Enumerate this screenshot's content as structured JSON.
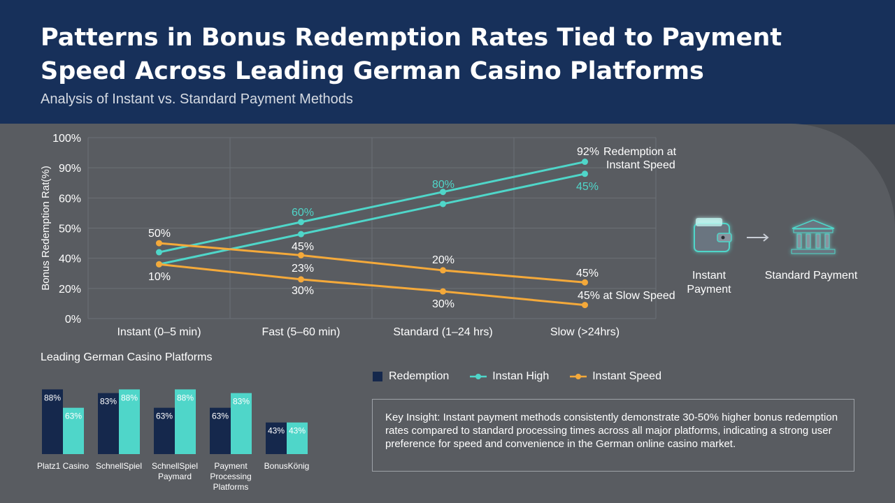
{
  "header": {
    "title": "Patterns in Bonus Redemption Rates Tied to Payment Speed Across Leading German Casino Platforms",
    "subtitle": "Analysis of Instant vs. Standard Payment Methods"
  },
  "colors": {
    "header_bg": "#17305a",
    "panel_bg": "#595c61",
    "teal": "#4fd6c9",
    "orange": "#f4a93a",
    "navy": "#15284c"
  },
  "chart_data": [
    {
      "type": "line",
      "ylabel": "Bonus Redemption Rat(%)",
      "categories": [
        "Instant (0–5 min)",
        "Fast (5–60 min)",
        "Standard (1–24 hrs)",
        "Slow (>24hrs)"
      ],
      "y_ticks": [
        "0%",
        "20%",
        "40%",
        "50%",
        "60%",
        "90%",
        "100%"
      ],
      "ylim": [
        0,
        6
      ],
      "grid": true,
      "series": [
        {
          "color": "#4fd6c9",
          "values": [
            2.2,
            3.2,
            4.2,
            5.2
          ]
        },
        {
          "color": "#4fd6c9",
          "values": [
            1.8,
            2.8,
            3.8,
            4.8
          ]
        },
        {
          "color": "#f4a93a",
          "values": [
            2.5,
            2.1,
            1.6,
            1.2
          ]
        },
        {
          "color": "#f4a93a",
          "values": [
            1.8,
            1.3,
            0.9,
            0.45
          ]
        }
      ],
      "annotations": [
        {
          "text": "92%",
          "color": "#ffffff"
        },
        {
          "text": "Redemption at",
          "color": "#ffffff"
        },
        {
          "text": "Instant Speed",
          "color": "#ffffff"
        },
        {
          "text": "80%",
          "color": "#4fd6c9"
        },
        {
          "text": "60%",
          "color": "#4fd6c9"
        },
        {
          "text": "45%",
          "color": "#4fd6c9"
        },
        {
          "text": "50%",
          "color": "#ffffff"
        },
        {
          "text": "45%",
          "color": "#ffffff"
        },
        {
          "text": "10%",
          "color": "#ffffff"
        },
        {
          "text": "23%",
          "color": "#ffffff"
        },
        {
          "text": "20%",
          "color": "#ffffff"
        },
        {
          "text": "30%",
          "color": "#ffffff"
        },
        {
          "text": "30%",
          "color": "#ffffff"
        },
        {
          "text": "45%",
          "color": "#ffffff"
        },
        {
          "text": "45% at Slow Speed",
          "color": "#ffffff"
        }
      ]
    },
    {
      "type": "bar",
      "title": "Leading German Casino Platforms",
      "categories": [
        "Platz1 Casino",
        "SchnellSpiel",
        "SchnellSpiel Paymard",
        "Payment Processing Platforms",
        "BonusKönig"
      ],
      "series": [
        {
          "color": "#15284c",
          "values": [
            88,
            83,
            63,
            63,
            43
          ],
          "labels": [
            "88%",
            "83%",
            "63%",
            "63%",
            "43%"
          ]
        },
        {
          "color": "#4fd6c9",
          "values": [
            63,
            88,
            88,
            83,
            43
          ],
          "labels": [
            "63%",
            "88%",
            "88%",
            "83%",
            "43%"
          ]
        }
      ]
    }
  ],
  "legend": {
    "items": [
      {
        "label": "Redemption",
        "color": "#15284c",
        "shape": "square"
      },
      {
        "label": "Instan High",
        "color": "#4fd6c9",
        "shape": "line-dot"
      },
      {
        "label": "Instant Speed",
        "color": "#f4a93a",
        "shape": "line-dot"
      }
    ]
  },
  "flow": {
    "left_icon": "wallet-icon",
    "arrow_icon": "arrow-right-icon",
    "right_icon": "bank-icon",
    "left_label": "Instant\nPayment",
    "right_label": "Standard Payment"
  },
  "insight": {
    "label": "Key Insight:",
    "text": "Instant payment methods consistently demonstrate 30-50% higher bonus redemption rates compared to standard processing times across all major platforms, indicating a strong user preference for speed and convenience in the German online casino market."
  }
}
